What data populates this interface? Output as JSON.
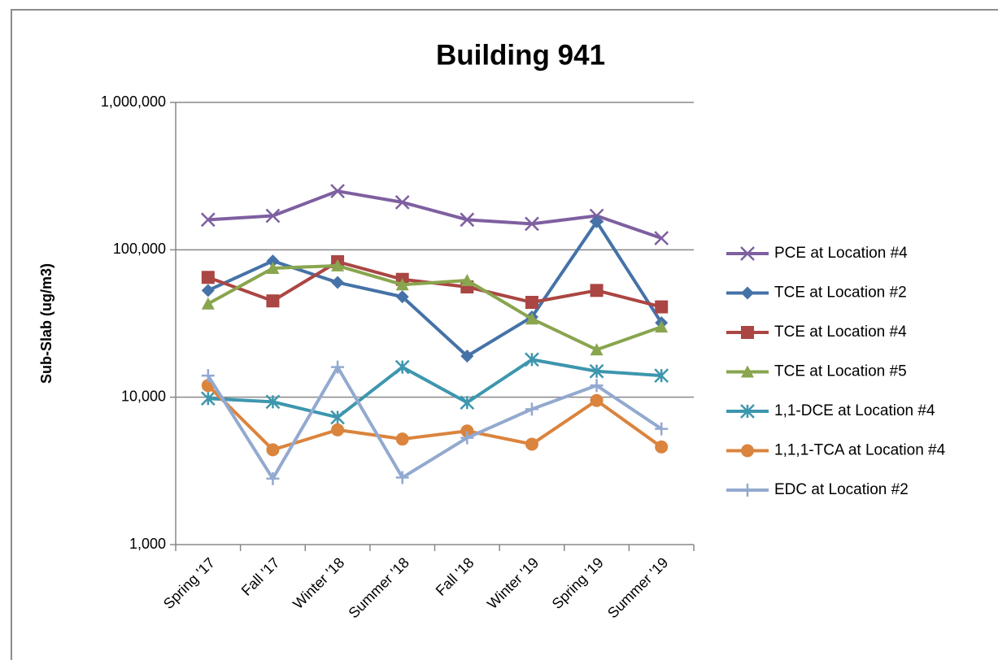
{
  "chart_data": {
    "type": "line",
    "title": "Building 941",
    "y_label": "Sub-Slab (ug/m3)",
    "categories": [
      "Spring '17",
      "Fall '17",
      "Winter '18",
      "Summer '18",
      "Fall '18",
      "Winter '19",
      "Spring '19",
      "Summer '19"
    ],
    "ylim": [
      1000,
      1000000
    ],
    "log_y": true,
    "yticks": [
      {
        "value": 1000,
        "label": "1,000"
      },
      {
        "value": 10000,
        "label": "10,000"
      },
      {
        "value": 100000,
        "label": "100,000"
      },
      {
        "value": 1000000,
        "label": "1,000,000"
      }
    ],
    "grid": true,
    "legend": "right",
    "series": [
      {
        "name": "PCE at Location #4",
        "color": "#7e5fa0",
        "marker": "x",
        "values": [
          160000,
          170000,
          250000,
          210000,
          160000,
          150000,
          170000,
          120000
        ]
      },
      {
        "name": "TCE at Location #2",
        "color": "#4572a7",
        "marker": "diamond",
        "values": [
          53000,
          84000,
          60000,
          48000,
          19000,
          35000,
          155000,
          32000
        ]
      },
      {
        "name": "TCE at Location #4",
        "color": "#aa4643",
        "marker": "square",
        "values": [
          65000,
          45000,
          83000,
          63000,
          56000,
          44000,
          53000,
          41000
        ]
      },
      {
        "name": "TCE at Location #5",
        "color": "#89a54e",
        "marker": "triangle",
        "values": [
          43000,
          75000,
          78000,
          58000,
          62000,
          34000,
          21000,
          30000
        ]
      },
      {
        "name": "1,1-DCE at Location #4",
        "color": "#3d96ae",
        "marker": "asterisk",
        "values": [
          9800,
          9300,
          7300,
          16000,
          9200,
          18000,
          15000,
          14000
        ]
      },
      {
        "name": "1,1,1-TCA at Location #4",
        "color": "#db843d",
        "marker": "circle",
        "values": [
          12000,
          4400,
          6000,
          5200,
          5900,
          4800,
          9500,
          4600
        ]
      },
      {
        "name": "EDC at Location #2",
        "color": "#93a9cf",
        "marker": "plus",
        "values": [
          14000,
          2800,
          16000,
          2850,
          5300,
          8300,
          12000,
          6100
        ]
      }
    ]
  }
}
